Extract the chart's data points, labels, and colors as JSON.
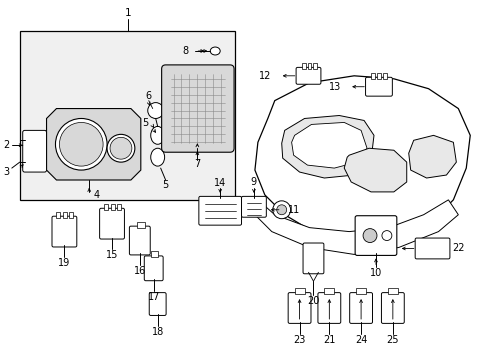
{
  "bg_color": "#ffffff",
  "fig_width": 4.89,
  "fig_height": 3.6,
  "dpi": 100
}
